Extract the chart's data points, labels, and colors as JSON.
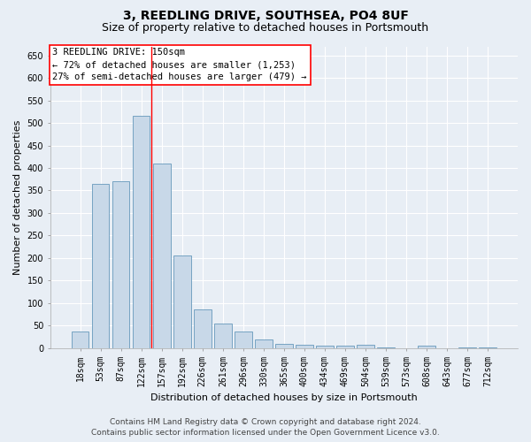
{
  "title": "3, REEDLING DRIVE, SOUTHSEA, PO4 8UF",
  "subtitle": "Size of property relative to detached houses in Portsmouth",
  "xlabel": "Distribution of detached houses by size in Portsmouth",
  "ylabel": "Number of detached properties",
  "categories": [
    "18sqm",
    "53sqm",
    "87sqm",
    "122sqm",
    "157sqm",
    "192sqm",
    "226sqm",
    "261sqm",
    "296sqm",
    "330sqm",
    "365sqm",
    "400sqm",
    "434sqm",
    "469sqm",
    "504sqm",
    "539sqm",
    "573sqm",
    "608sqm",
    "643sqm",
    "677sqm",
    "712sqm"
  ],
  "values": [
    37,
    365,
    370,
    515,
    410,
    205,
    85,
    55,
    37,
    20,
    10,
    7,
    5,
    5,
    7,
    2,
    0,
    5,
    0,
    2,
    2
  ],
  "bar_color": "#c8d8e8",
  "bar_edge_color": "#6699bb",
  "ylim": [
    0,
    670
  ],
  "yticks": [
    0,
    50,
    100,
    150,
    200,
    250,
    300,
    350,
    400,
    450,
    500,
    550,
    600,
    650
  ],
  "red_line_index": 3.5,
  "annotation_title": "3 REEDLING DRIVE: 150sqm",
  "annotation_line1": "← 72% of detached houses are smaller (1,253)",
  "annotation_line2": "27% of semi-detached houses are larger (479) →",
  "footer_line1": "Contains HM Land Registry data © Crown copyright and database right 2024.",
  "footer_line2": "Contains public sector information licensed under the Open Government Licence v3.0.",
  "bg_color": "#e8eef5",
  "plot_bg_color": "#e8eef5",
  "grid_color": "#ffffff",
  "title_fontsize": 10,
  "subtitle_fontsize": 9,
  "axis_label_fontsize": 8,
  "tick_fontsize": 7,
  "annotation_fontsize": 7.5,
  "footer_fontsize": 6.5
}
